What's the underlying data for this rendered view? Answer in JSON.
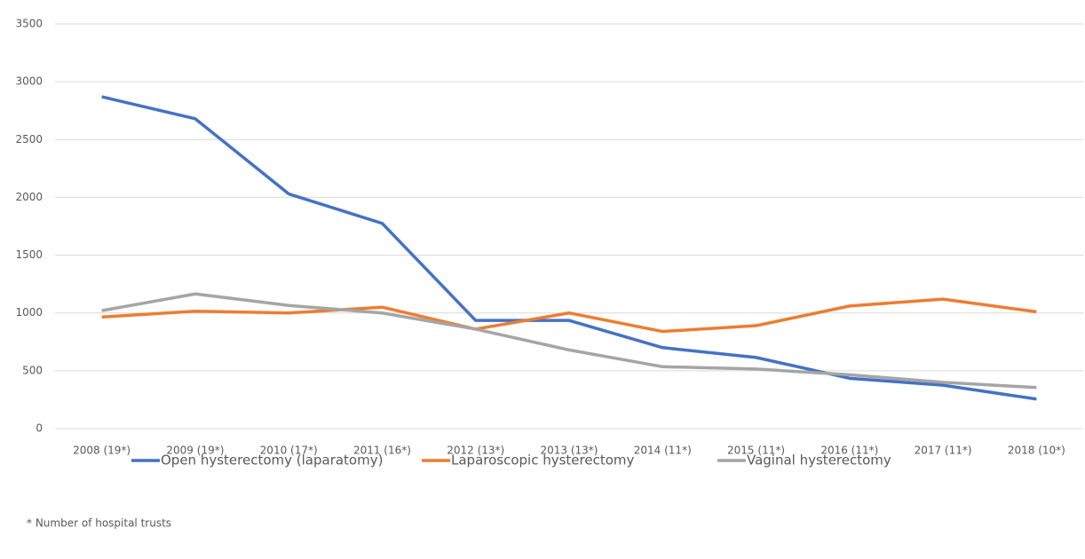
{
  "chart_data": {
    "type": "line",
    "categories": [
      "2008 (19*)",
      "2009 (19*)",
      "2010 (17*)",
      "2011 (16*)",
      "2012 (13*)",
      "2013 (13*)",
      "2014 (11*)",
      "2015 (11*)",
      "2016 (11*)",
      "2017 (11*)",
      "2018 (10*)"
    ],
    "series": [
      {
        "name": "Open hysterectomy (laparatomy)",
        "color": "#4472c4",
        "values": [
          2870,
          2680,
          2030,
          1775,
          935,
          935,
          700,
          615,
          435,
          375,
          255
        ]
      },
      {
        "name": "Laparoscopic hysterectomy",
        "color": "#ed7d31",
        "values": [
          965,
          1015,
          1000,
          1050,
          860,
          1000,
          840,
          890,
          1060,
          1120,
          1010
        ]
      },
      {
        "name": "Vaginal hysterectomy",
        "color": "#a5a5a5",
        "values": [
          1020,
          1165,
          1065,
          1000,
          860,
          680,
          535,
          515,
          465,
          400,
          355
        ]
      }
    ],
    "ylim": [
      0,
      3500
    ],
    "yticks": [
      0,
      500,
      1000,
      1500,
      2000,
      2500,
      3000,
      3500
    ],
    "grid": true,
    "legend": "bottom",
    "note": "* Number of hospital trusts"
  }
}
